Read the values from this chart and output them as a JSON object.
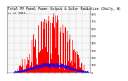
{
  "title": "Total PV Panel Power Output & Solar Radiation (Daily, W)",
  "subtitle": "as of 2008-...",
  "bg_color": "#ffffff",
  "plot_bg_color": "#f8f8f8",
  "grid_color": "#bbbbbb",
  "red_fill_color": "#ff0000",
  "blue_line_color": "#0000ff",
  "n_points": 365,
  "ylim_max": 900,
  "title_fontsize": 3.5,
  "subtitle_fontsize": 3.0,
  "tick_fontsize": 2.6,
  "right_ytick_labels": [
    "800",
    "700",
    "600",
    "500",
    "400",
    "300",
    "200",
    "100",
    "0"
  ],
  "right_ytick_values": [
    800,
    700,
    600,
    500,
    400,
    300,
    200,
    100,
    0
  ],
  "n_vert_gridlines": 13,
  "n_horiz_gridlines": 9
}
